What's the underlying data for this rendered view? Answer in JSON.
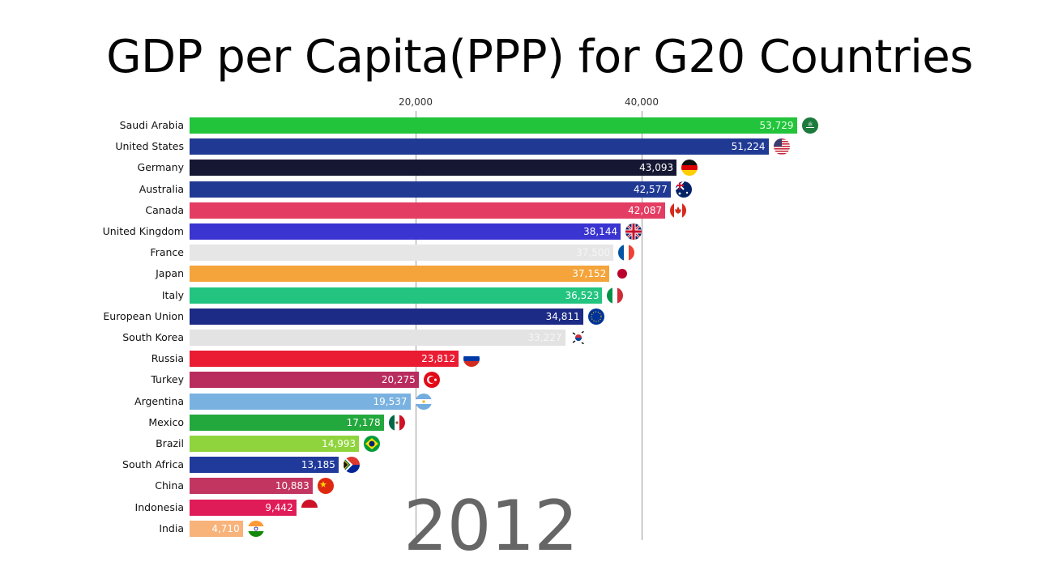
{
  "title": "GDP per Capita(PPP) for G20 Countries",
  "year": "2012",
  "axis": {
    "ticks": [
      {
        "label": "20,000",
        "value": 20000
      },
      {
        "label": "40,000",
        "value": 40000
      }
    ]
  },
  "chart_data": {
    "type": "bar",
    "orientation": "horizontal",
    "title": "GDP per Capita(PPP) for G20 Countries",
    "annotation": "2012",
    "xlabel": "",
    "ylabel": "",
    "xlim": [
      0,
      55000
    ],
    "xticks": [
      20000,
      40000
    ],
    "grid": true,
    "categories": [
      "Saudi Arabia",
      "United States",
      "Germany",
      "Australia",
      "Canada",
      "United Kingdom",
      "France",
      "Japan",
      "Italy",
      "European Union",
      "South Korea",
      "Russia",
      "Turkey",
      "Argentina",
      "Mexico",
      "Brazil",
      "South Africa",
      "China",
      "Indonesia",
      "India"
    ],
    "values": [
      53729,
      51224,
      43093,
      42577,
      42087,
      38144,
      37500,
      37152,
      36523,
      34811,
      33227,
      23812,
      20275,
      19537,
      17178,
      14993,
      13185,
      10883,
      9442,
      4710
    ]
  },
  "rows": [
    {
      "country": "Saudi Arabia",
      "value": 53729,
      "label": "53,729",
      "color": "#22c43b",
      "text": "#e9ffe9",
      "flag": "saudi-arabia"
    },
    {
      "country": "United States",
      "value": 51224,
      "label": "51,224",
      "color": "#203a94",
      "text": "#ffffff",
      "flag": "united-states"
    },
    {
      "country": "Germany",
      "value": 43093,
      "label": "43,093",
      "color": "#151733",
      "text": "#ffffff",
      "flag": "germany"
    },
    {
      "country": "Australia",
      "value": 42577,
      "label": "42,577",
      "color": "#203a94",
      "text": "#ffffff",
      "flag": "australia"
    },
    {
      "country": "Canada",
      "value": 42087,
      "label": "42,087",
      "color": "#e43d63",
      "text": "#ffffff",
      "flag": "canada"
    },
    {
      "country": "United Kingdom",
      "value": 38144,
      "label": "38,144",
      "color": "#3a34d0",
      "text": "#ffffff",
      "flag": "united-kingdom"
    },
    {
      "country": "France",
      "value": 37500,
      "label": "37,500",
      "color": "#e6e6e6",
      "text": "#f6f6f6",
      "flag": "france"
    },
    {
      "country": "Japan",
      "value": 37152,
      "label": "37,152",
      "color": "#f4a43a",
      "text": "#ffffff",
      "flag": "japan"
    },
    {
      "country": "Italy",
      "value": 36523,
      "label": "36,523",
      "color": "#22c47f",
      "text": "#ffffff",
      "flag": "italy"
    },
    {
      "country": "European Union",
      "value": 34811,
      "label": "34,811",
      "color": "#1c2b85",
      "text": "#ffffff",
      "flag": "european-union"
    },
    {
      "country": "South Korea",
      "value": 33227,
      "label": "33,227",
      "color": "#e3e3e3",
      "text": "#f6f6f6",
      "flag": "south-korea"
    },
    {
      "country": "Russia",
      "value": 23812,
      "label": "23,812",
      "color": "#ea1c34",
      "text": "#ffffff",
      "flag": "russia"
    },
    {
      "country": "Turkey",
      "value": 20275,
      "label": "20,275",
      "color": "#b82c5e",
      "text": "#ffffff",
      "flag": "turkey"
    },
    {
      "country": "Argentina",
      "value": 19537,
      "label": "19,537",
      "color": "#79b2e0",
      "text": "#ffffff",
      "flag": "argentina"
    },
    {
      "country": "Mexico",
      "value": 17178,
      "label": "17,178",
      "color": "#22a83c",
      "text": "#ffffff",
      "flag": "mexico"
    },
    {
      "country": "Brazil",
      "value": 14993,
      "label": "14,993",
      "color": "#8fd43c",
      "text": "#ffffff",
      "flag": "brazil"
    },
    {
      "country": "South Africa",
      "value": 13185,
      "label": "13,185",
      "color": "#203a9c",
      "text": "#ffffff",
      "flag": "south-africa"
    },
    {
      "country": "China",
      "value": 10883,
      "label": "10,883",
      "color": "#c23560",
      "text": "#ffffff",
      "flag": "china"
    },
    {
      "country": "Indonesia",
      "value": 9442,
      "label": "9,442",
      "color": "#e01c58",
      "text": "#ffffff",
      "flag": "indonesia"
    },
    {
      "country": "India",
      "value": 4710,
      "label": "4,710",
      "color": "#f7b37a",
      "text": "#ffffff",
      "flag": "india"
    }
  ]
}
